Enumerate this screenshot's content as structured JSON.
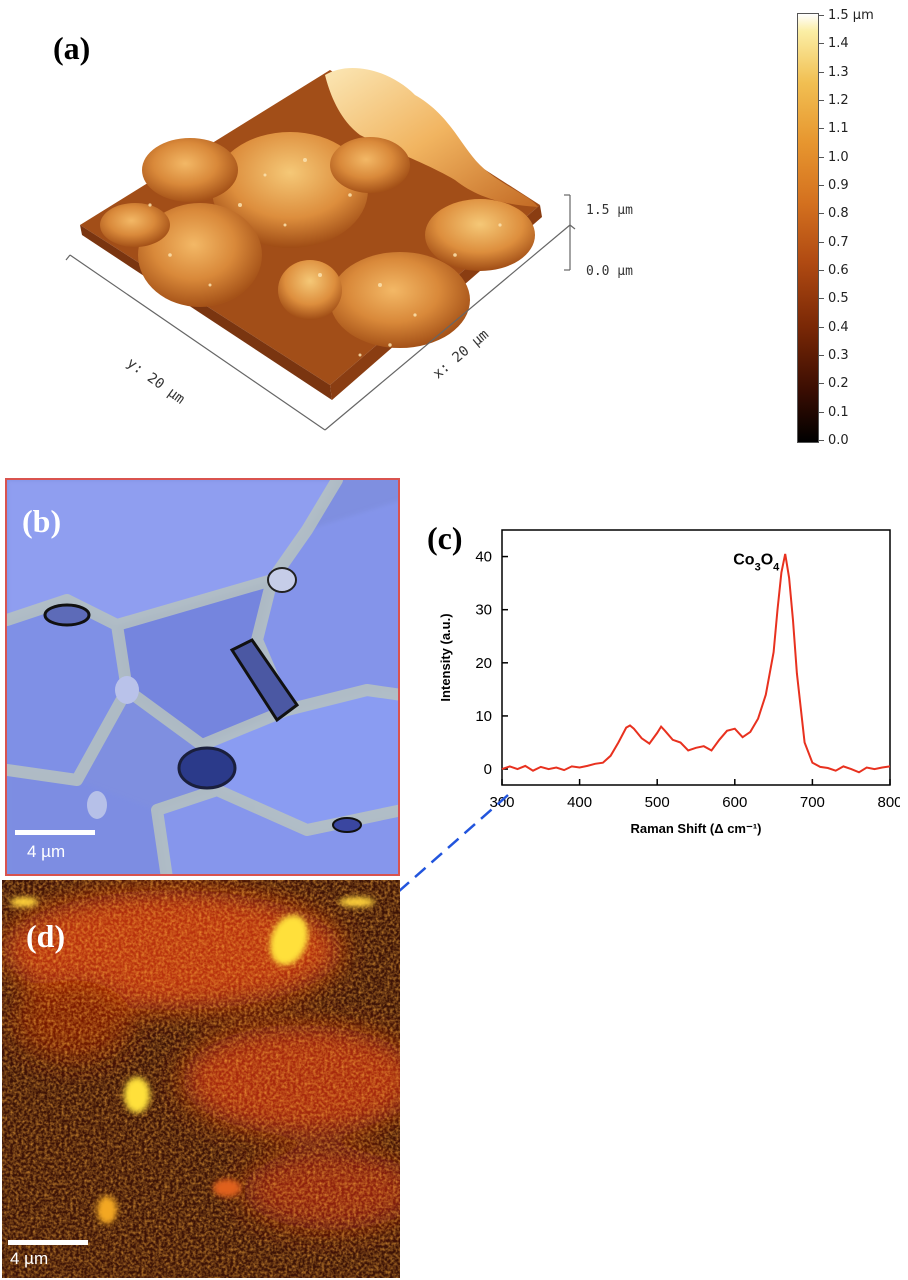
{
  "panel_a": {
    "label": "(a)",
    "z_scale_top": "1.5 µm",
    "z_scale_bottom": "0.0 µm",
    "y_axis": "y: 20 µm",
    "x_axis": "x: 20 µm",
    "colorbar": {
      "top_label": "1.5 µm",
      "tick_labels": [
        "1.4",
        "1.3",
        "1.2",
        "1.1",
        "1.0",
        "0.9",
        "0.8",
        "0.7",
        "0.6",
        "0.5",
        "0.4",
        "0.3",
        "0.2",
        "0.1",
        "0.0"
      ]
    }
  },
  "panel_b": {
    "label": "(b)",
    "scale_bar": "4 µm"
  },
  "panel_c": {
    "label": "(c)"
  },
  "panel_d": {
    "label": "(d)",
    "scale_bar": "4 µm"
  },
  "colors": {
    "raman_line": "#e8311f",
    "arrow": "#2255dd",
    "panel_b_border": "#d9534f"
  },
  "chart_data": {
    "type": "line",
    "xlabel": "Raman Shift (Δ cm⁻¹)",
    "ylabel": "Intensity (a.u.)",
    "annotation": "Co3O4",
    "xlim": [
      300,
      800
    ],
    "ylim": [
      -3,
      45
    ],
    "xticks": [
      300,
      400,
      500,
      600,
      700,
      800
    ],
    "yticks": [
      0,
      10,
      20,
      30,
      40
    ],
    "grid": false,
    "series": [
      {
        "x": [
          300,
          310,
          320,
          330,
          340,
          350,
          360,
          370,
          380,
          390,
          400,
          410,
          420,
          430,
          440,
          450,
          460,
          465,
          470,
          480,
          490,
          500,
          505,
          510,
          520,
          530,
          540,
          550,
          560,
          570,
          580,
          590,
          600,
          610,
          620,
          630,
          640,
          650,
          655,
          660,
          665,
          670,
          675,
          680,
          690,
          700,
          710,
          720,
          730,
          740,
          750,
          760,
          770,
          780,
          790,
          800
        ],
        "y": [
          0,
          0.5,
          0,
          0.6,
          -0.3,
          0.4,
          0,
          0.3,
          -0.2,
          0.5,
          0.3,
          0.6,
          1,
          1.2,
          2.5,
          5,
          7.8,
          8.2,
          7.6,
          5.8,
          4.8,
          6.8,
          8,
          7.2,
          5.5,
          5,
          3.5,
          4,
          4.3,
          3.5,
          5.5,
          7.2,
          7.6,
          6,
          7,
          9.5,
          14,
          22,
          30,
          37,
          40.5,
          36,
          28,
          18,
          5,
          1.2,
          0.4,
          0.2,
          -0.3,
          0.5,
          0,
          -0.6,
          0.3,
          0,
          0.3,
          0.5
        ]
      }
    ]
  }
}
